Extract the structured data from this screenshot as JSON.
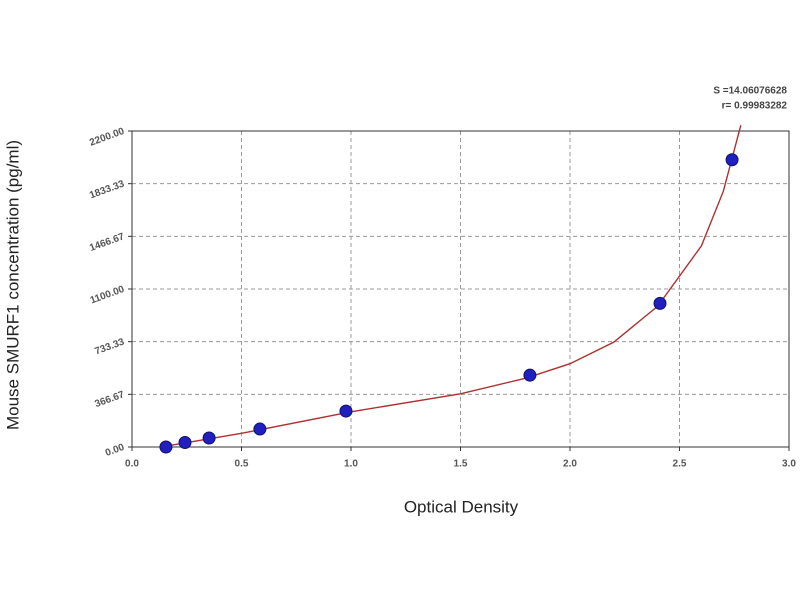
{
  "chart_data": {
    "type": "scatter",
    "x_label": "Optical Density",
    "y_label": "Mouse SMURF1 concentration (pg/ml)",
    "annotations": [
      "S =14.06076628",
      "r= 0.99983282"
    ],
    "xlim": [
      0,
      3.0
    ],
    "xticks": [
      {
        "value": 0,
        "label": "0.0"
      },
      0.5,
      {
        "value": 1,
        "label": "1.0"
      },
      1.5,
      {
        "value": 2,
        "label": "2.0"
      },
      2.5,
      {
        "value": 3,
        "label": "3.0"
      }
    ],
    "ylim": [
      0,
      2200
    ],
    "yticks": [
      {
        "value": 0,
        "label": "0.00"
      },
      366.67,
      733.33,
      {
        "value": 1100,
        "label": "1100.00"
      },
      1466.67,
      1833.33,
      {
        "value": 2200,
        "label": "2200.00"
      }
    ],
    "grid": true,
    "series": [
      {
        "style": "markers",
        "color": "#2020c0",
        "x": [
          0.155,
          0.242,
          0.352,
          0.584,
          0.977,
          1.817,
          2.411,
          2.74
        ],
        "values": [
          0,
          31.25,
          62.5,
          125,
          250,
          500,
          1000,
          2000
        ]
      },
      {
        "style": "line",
        "color": "#b03030",
        "x": [
          0.15,
          0.5,
          1.0,
          1.5,
          1.8,
          2.0,
          2.2,
          2.4,
          2.6,
          2.7,
          2.78
        ],
        "values": [
          5,
          95,
          245,
          370,
          480,
          580,
          730,
          980,
          1400,
          1780,
          2240
        ]
      }
    ]
  }
}
